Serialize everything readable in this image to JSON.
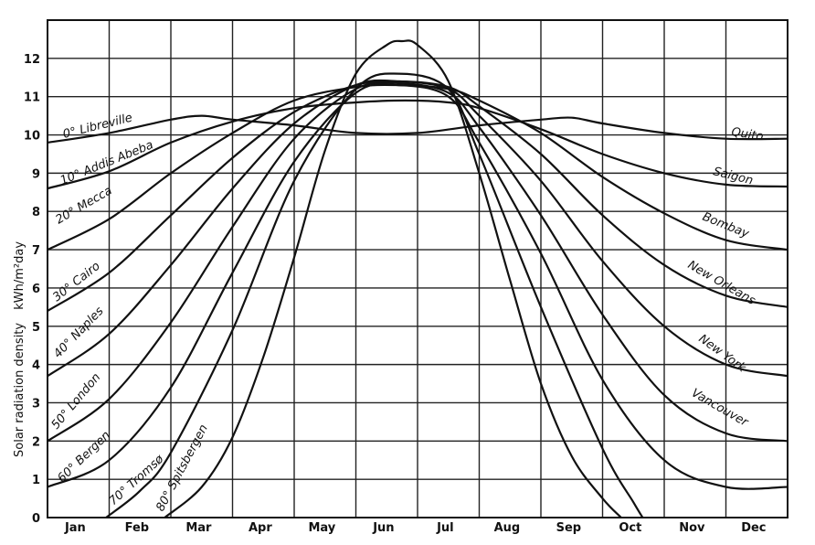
{
  "chart_data": {
    "type": "line",
    "title": "",
    "xlabel": "",
    "ylabel_main": "Solar radiation density",
    "ylabel_unit": "kWh/m²day",
    "ylim": [
      0,
      13
    ],
    "yticks": [
      0,
      1,
      2,
      3,
      4,
      5,
      6,
      7,
      8,
      9,
      10,
      11,
      12
    ],
    "months": [
      "Jan",
      "Feb",
      "Mar",
      "Apr",
      "May",
      "Jun",
      "Jul",
      "Aug",
      "Sep",
      "Oct",
      "Nov",
      "Dec"
    ],
    "grid": true,
    "x_unit": "month index (0 = Jan 1, 12 = Dec 31)",
    "series": [
      {
        "name": "0° Libreville",
        "end_label": "Quito",
        "points": [
          [
            0,
            9.8
          ],
          [
            1,
            10.05
          ],
          [
            2,
            10.4
          ],
          [
            2.5,
            10.5
          ],
          [
            3,
            10.4
          ],
          [
            4,
            10.25
          ],
          [
            5,
            10.05
          ],
          [
            6,
            10.05
          ],
          [
            7,
            10.25
          ],
          [
            8,
            10.4
          ],
          [
            8.5,
            10.45
          ],
          [
            9,
            10.3
          ],
          [
            10,
            10.05
          ],
          [
            11,
            9.9
          ],
          [
            12,
            9.9
          ]
        ]
      },
      {
        "name": "10° Addis Abeba",
        "end_label": "Saigon",
        "points": [
          [
            0,
            8.6
          ],
          [
            1,
            9.05
          ],
          [
            2,
            9.8
          ],
          [
            3,
            10.35
          ],
          [
            4,
            10.7
          ],
          [
            5,
            10.85
          ],
          [
            5.8,
            10.9
          ],
          [
            6.5,
            10.85
          ],
          [
            7,
            10.7
          ],
          [
            8,
            10.15
          ],
          [
            9,
            9.5
          ],
          [
            10,
            9.0
          ],
          [
            11,
            8.7
          ],
          [
            12,
            8.65
          ]
        ]
      },
      {
        "name": "20° Mecca",
        "end_label": "Bombay",
        "points": [
          [
            0,
            7.0
          ],
          [
            1,
            7.8
          ],
          [
            2,
            9.0
          ],
          [
            3,
            10.05
          ],
          [
            4,
            10.9
          ],
          [
            5,
            11.25
          ],
          [
            5.7,
            11.3
          ],
          [
            6.5,
            11.2
          ],
          [
            7,
            10.9
          ],
          [
            8,
            10.05
          ],
          [
            9,
            8.9
          ],
          [
            10,
            7.95
          ],
          [
            11,
            7.25
          ],
          [
            12,
            7.0
          ]
        ]
      },
      {
        "name": "30° Cairo",
        "end_label": "New Orleans",
        "points": [
          [
            0,
            5.4
          ],
          [
            1,
            6.4
          ],
          [
            2,
            7.9
          ],
          [
            3,
            9.4
          ],
          [
            4,
            10.6
          ],
          [
            5,
            11.3
          ],
          [
            5.7,
            11.4
          ],
          [
            6.5,
            11.25
          ],
          [
            7,
            10.75
          ],
          [
            8,
            9.5
          ],
          [
            9,
            7.9
          ],
          [
            10,
            6.6
          ],
          [
            11,
            5.8
          ],
          [
            12,
            5.5
          ]
        ]
      },
      {
        "name": "40° Naples",
        "end_label": "New York",
        "points": [
          [
            0,
            3.7
          ],
          [
            1,
            4.8
          ],
          [
            2,
            6.6
          ],
          [
            3,
            8.6
          ],
          [
            4,
            10.3
          ],
          [
            5,
            11.3
          ],
          [
            5.7,
            11.4
          ],
          [
            6.5,
            11.2
          ],
          [
            7,
            10.5
          ],
          [
            8,
            8.8
          ],
          [
            9,
            6.7
          ],
          [
            10,
            5.0
          ],
          [
            11,
            4.0
          ],
          [
            12,
            3.7
          ]
        ]
      },
      {
        "name": "50° London",
        "end_label": "Vancouver",
        "points": [
          [
            0,
            2.0
          ],
          [
            1,
            3.1
          ],
          [
            2,
            5.1
          ],
          [
            3,
            7.6
          ],
          [
            4,
            9.9
          ],
          [
            5,
            11.2
          ],
          [
            5.7,
            11.35
          ],
          [
            6.5,
            11.1
          ],
          [
            7,
            10.2
          ],
          [
            8,
            7.9
          ],
          [
            9,
            5.3
          ],
          [
            10,
            3.2
          ],
          [
            11,
            2.2
          ],
          [
            12,
            2.0
          ]
        ]
      },
      {
        "name": "60° Bergen",
        "end_label": "",
        "points": [
          [
            0,
            0.8
          ],
          [
            1,
            1.5
          ],
          [
            2,
            3.4
          ],
          [
            3,
            6.4
          ],
          [
            4,
            9.3
          ],
          [
            5,
            11.1
          ],
          [
            5.7,
            11.3
          ],
          [
            6.5,
            11.0
          ],
          [
            7,
            9.8
          ],
          [
            8,
            6.9
          ],
          [
            9,
            3.6
          ],
          [
            10,
            1.5
          ],
          [
            11,
            0.8
          ],
          [
            12,
            0.8
          ]
        ]
      },
      {
        "name": "70° Tromsø",
        "end_label": "",
        "points": [
          [
            0.95,
            0
          ],
          [
            1.5,
            0.7
          ],
          [
            2,
            1.7
          ],
          [
            3,
            4.9
          ],
          [
            4,
            8.8
          ],
          [
            5,
            11.2
          ],
          [
            5.7,
            11.6
          ],
          [
            6.5,
            11.2
          ],
          [
            7,
            9.5
          ],
          [
            8,
            5.5
          ],
          [
            9,
            1.8
          ],
          [
            9.5,
            0.4
          ],
          [
            9.65,
            0
          ]
        ]
      },
      {
        "name": "80° Spitsbergen",
        "end_label": "",
        "points": [
          [
            1.9,
            0
          ],
          [
            2.5,
            0.8
          ],
          [
            3,
            2.1
          ],
          [
            3.5,
            4.2
          ],
          [
            4,
            6.8
          ],
          [
            4.5,
            9.6
          ],
          [
            5,
            11.6
          ],
          [
            5.5,
            12.35
          ],
          [
            5.75,
            12.45
          ],
          [
            6,
            12.35
          ],
          [
            6.5,
            11.4
          ],
          [
            7,
            9.0
          ],
          [
            7.5,
            6.2
          ],
          [
            8,
            3.5
          ],
          [
            8.5,
            1.6
          ],
          [
            9,
            0.5
          ],
          [
            9.3,
            0
          ]
        ]
      }
    ]
  }
}
